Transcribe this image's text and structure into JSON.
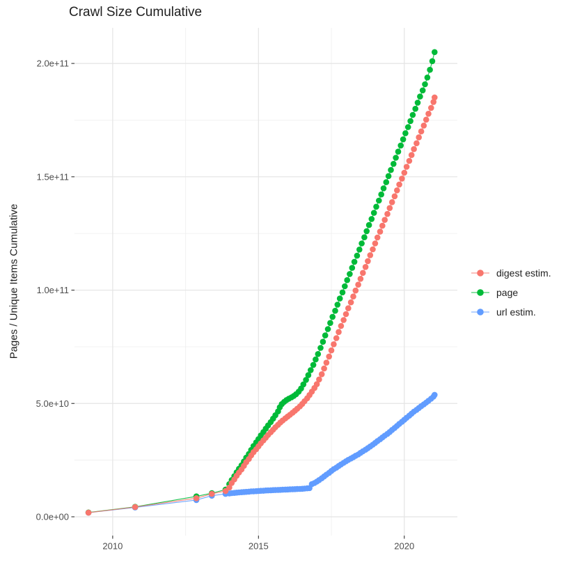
{
  "chart_data": {
    "type": "line",
    "title": "Crawl Size Cumulative",
    "xlabel": "",
    "ylabel": "Pages / Unique Items Cumulative",
    "x_unit": "year (crawl date, decimal)",
    "y_unit": "cumulative count, values in billions (1e9)",
    "grid": true,
    "legend_position": "right",
    "x_range": [
      2008.69,
      2021.82
    ],
    "y_range_e9": [
      -8.3,
      215.7
    ],
    "x_ticks": [
      {
        "value": 2010,
        "label": "2010"
      },
      {
        "value": 2015,
        "label": "2015"
      },
      {
        "value": 2020,
        "label": "2020"
      }
    ],
    "x_minor_ticks": [
      2012.5,
      2017.5
    ],
    "y_ticks": [
      {
        "value_e9": 0,
        "label": "0.0e+00"
      },
      {
        "value_e9": 50,
        "label": "5.0e+10"
      },
      {
        "value_e9": 100,
        "label": "1.0e+11"
      },
      {
        "value_e9": 150,
        "label": "1.5e+11"
      },
      {
        "value_e9": 200,
        "label": "2.0e+11"
      }
    ],
    "y_minor_ticks_e9": [
      25,
      75,
      125,
      175
    ],
    "series": [
      {
        "name": "digest estim.",
        "color": "#F8766D",
        "points_year_billions": [
          [
            2009.17,
            1.8
          ],
          [
            2010.77,
            4.3
          ],
          [
            2012.87,
            8.2
          ],
          [
            2013.4,
            10.1
          ],
          [
            2013.87,
            11.4
          ],
          [
            2014.0,
            12.9
          ],
          [
            2014.08,
            14.9
          ],
          [
            2014.17,
            16.5
          ],
          [
            2014.25,
            18.1
          ],
          [
            2014.33,
            19.5
          ],
          [
            2014.42,
            20.9
          ],
          [
            2014.5,
            22.5
          ],
          [
            2014.58,
            24.1
          ],
          [
            2014.67,
            25.5
          ],
          [
            2014.75,
            27.1
          ],
          [
            2014.83,
            28.5
          ],
          [
            2014.92,
            29.8
          ],
          [
            2015.0,
            31.1
          ],
          [
            2015.08,
            32.4
          ],
          [
            2015.17,
            33.7
          ],
          [
            2015.25,
            34.9
          ],
          [
            2015.33,
            36.1
          ],
          [
            2015.42,
            37.3
          ],
          [
            2015.5,
            38.4
          ],
          [
            2015.58,
            39.5
          ],
          [
            2015.67,
            40.6
          ],
          [
            2015.75,
            41.6
          ],
          [
            2015.83,
            42.5
          ],
          [
            2015.92,
            43.4
          ],
          [
            2016.0,
            44.2
          ],
          [
            2016.08,
            45.0
          ],
          [
            2016.17,
            45.9
          ],
          [
            2016.25,
            46.8
          ],
          [
            2016.33,
            47.7
          ],
          [
            2016.42,
            48.7
          ],
          [
            2016.5,
            49.8
          ],
          [
            2016.58,
            51.0
          ],
          [
            2016.67,
            52.3
          ],
          [
            2016.75,
            53.7
          ],
          [
            2016.83,
            55.2
          ],
          [
            2016.92,
            56.8
          ],
          [
            2017.0,
            58.5
          ],
          [
            2017.08,
            60.6
          ],
          [
            2017.17,
            62.9
          ],
          [
            2017.25,
            65.4
          ],
          [
            2017.33,
            68.0
          ],
          [
            2017.42,
            70.7
          ],
          [
            2017.5,
            73.4
          ],
          [
            2017.58,
            76.1
          ],
          [
            2017.67,
            78.8
          ],
          [
            2017.75,
            81.5
          ],
          [
            2017.83,
            84.2
          ],
          [
            2017.92,
            86.8
          ],
          [
            2018.0,
            89.4
          ],
          [
            2018.08,
            92.0
          ],
          [
            2018.17,
            94.6
          ],
          [
            2018.25,
            97.2
          ],
          [
            2018.33,
            99.8
          ],
          [
            2018.42,
            102.4
          ],
          [
            2018.5,
            105.0
          ],
          [
            2018.58,
            107.6
          ],
          [
            2018.67,
            110.2
          ],
          [
            2018.75,
            112.8
          ],
          [
            2018.83,
            115.4
          ],
          [
            2018.92,
            118.0
          ],
          [
            2019.0,
            120.6
          ],
          [
            2019.08,
            123.2
          ],
          [
            2019.17,
            125.8
          ],
          [
            2019.25,
            128.4
          ],
          [
            2019.33,
            131.0
          ],
          [
            2019.42,
            133.6
          ],
          [
            2019.5,
            136.2
          ],
          [
            2019.58,
            138.8
          ],
          [
            2019.67,
            141.4
          ],
          [
            2019.75,
            144.0
          ],
          [
            2019.83,
            146.6
          ],
          [
            2019.92,
            149.2
          ],
          [
            2020.0,
            151.8
          ],
          [
            2020.08,
            154.4
          ],
          [
            2020.17,
            157.0
          ],
          [
            2020.25,
            159.6
          ],
          [
            2020.33,
            162.2
          ],
          [
            2020.42,
            164.8
          ],
          [
            2020.5,
            167.4
          ],
          [
            2020.58,
            170.0
          ],
          [
            2020.67,
            172.6
          ],
          [
            2020.75,
            175.2
          ],
          [
            2020.83,
            177.8
          ],
          [
            2020.92,
            180.4
          ],
          [
            2021.0,
            183.0
          ],
          [
            2021.04,
            185.0
          ]
        ]
      },
      {
        "name": "page",
        "color": "#00BA38",
        "points_year_billions": [
          [
            2009.17,
            1.9
          ],
          [
            2010.77,
            4.4
          ],
          [
            2012.87,
            9.0
          ],
          [
            2013.4,
            10.4
          ],
          [
            2013.87,
            12.0
          ],
          [
            2014.0,
            14.4
          ],
          [
            2014.08,
            16.2
          ],
          [
            2014.17,
            17.9
          ],
          [
            2014.25,
            19.6
          ],
          [
            2014.33,
            21.2
          ],
          [
            2014.42,
            22.7
          ],
          [
            2014.5,
            24.4
          ],
          [
            2014.58,
            26.1
          ],
          [
            2014.67,
            27.7
          ],
          [
            2014.75,
            29.5
          ],
          [
            2014.83,
            31.2
          ],
          [
            2014.92,
            32.8
          ],
          [
            2015.0,
            34.3
          ],
          [
            2015.08,
            35.9
          ],
          [
            2015.17,
            37.4
          ],
          [
            2015.25,
            38.9
          ],
          [
            2015.33,
            40.3
          ],
          [
            2015.42,
            41.8
          ],
          [
            2015.5,
            43.3
          ],
          [
            2015.58,
            44.8
          ],
          [
            2015.67,
            46.5
          ],
          [
            2015.73,
            48.3
          ],
          [
            2015.8,
            49.7
          ],
          [
            2015.88,
            50.7
          ],
          [
            2015.96,
            51.5
          ],
          [
            2016.04,
            52.1
          ],
          [
            2016.13,
            52.7
          ],
          [
            2016.21,
            53.3
          ],
          [
            2016.29,
            54.1
          ],
          [
            2016.38,
            55.2
          ],
          [
            2016.46,
            56.6
          ],
          [
            2016.54,
            58.4
          ],
          [
            2016.63,
            60.4
          ],
          [
            2016.71,
            62.5
          ],
          [
            2016.79,
            64.7
          ],
          [
            2016.88,
            67.0
          ],
          [
            2016.96,
            69.4
          ],
          [
            2017.04,
            71.8
          ],
          [
            2017.13,
            74.5
          ],
          [
            2017.21,
            77.2
          ],
          [
            2017.29,
            80.0
          ],
          [
            2017.38,
            82.8
          ],
          [
            2017.46,
            85.5
          ],
          [
            2017.54,
            88.2
          ],
          [
            2017.63,
            90.9
          ],
          [
            2017.71,
            93.6
          ],
          [
            2017.79,
            96.3
          ],
          [
            2017.88,
            99.0
          ],
          [
            2017.96,
            101.7
          ],
          [
            2018.04,
            104.4
          ],
          [
            2018.13,
            107.1
          ],
          [
            2018.21,
            109.8
          ],
          [
            2018.29,
            112.5
          ],
          [
            2018.38,
            115.2
          ],
          [
            2018.46,
            117.9
          ],
          [
            2018.54,
            120.6
          ],
          [
            2018.63,
            123.3
          ],
          [
            2018.71,
            126.0
          ],
          [
            2018.79,
            128.7
          ],
          [
            2018.88,
            131.4
          ],
          [
            2018.96,
            134.1
          ],
          [
            2019.04,
            136.8
          ],
          [
            2019.13,
            139.5
          ],
          [
            2019.21,
            142.2
          ],
          [
            2019.29,
            144.9
          ],
          [
            2019.38,
            147.6
          ],
          [
            2019.46,
            150.3
          ],
          [
            2019.54,
            153.0
          ],
          [
            2019.63,
            155.7
          ],
          [
            2019.71,
            158.4
          ],
          [
            2019.79,
            161.1
          ],
          [
            2019.88,
            163.8
          ],
          [
            2019.96,
            166.5
          ],
          [
            2020.04,
            169.2
          ],
          [
            2020.13,
            171.9
          ],
          [
            2020.21,
            174.6
          ],
          [
            2020.29,
            177.3
          ],
          [
            2020.38,
            180.0
          ],
          [
            2020.46,
            182.7
          ],
          [
            2020.54,
            185.4
          ],
          [
            2020.63,
            188.1
          ],
          [
            2020.71,
            190.8
          ],
          [
            2020.79,
            193.8
          ],
          [
            2020.88,
            197.2
          ],
          [
            2020.96,
            201.0
          ],
          [
            2021.04,
            205.0
          ]
        ]
      },
      {
        "name": "url estim.",
        "color": "#619CFF",
        "points_year_billions": [
          [
            2009.17,
            1.8
          ],
          [
            2010.77,
            4.1
          ],
          [
            2012.87,
            7.4
          ],
          [
            2013.4,
            9.3
          ],
          [
            2013.87,
            10.1
          ],
          [
            2014.0,
            10.3
          ],
          [
            2014.08,
            10.45
          ],
          [
            2014.17,
            10.55
          ],
          [
            2014.25,
            10.65
          ],
          [
            2014.33,
            10.75
          ],
          [
            2014.42,
            10.85
          ],
          [
            2014.5,
            10.95
          ],
          [
            2014.58,
            11.0
          ],
          [
            2014.67,
            11.1
          ],
          [
            2014.75,
            11.2
          ],
          [
            2014.83,
            11.25
          ],
          [
            2014.92,
            11.3
          ],
          [
            2015.0,
            11.4
          ],
          [
            2015.08,
            11.45
          ],
          [
            2015.17,
            11.5
          ],
          [
            2015.25,
            11.6
          ],
          [
            2015.33,
            11.65
          ],
          [
            2015.42,
            11.7
          ],
          [
            2015.5,
            11.75
          ],
          [
            2015.58,
            11.8
          ],
          [
            2015.67,
            11.85
          ],
          [
            2015.75,
            11.9
          ],
          [
            2015.83,
            11.95
          ],
          [
            2015.92,
            12.0
          ],
          [
            2016.0,
            12.05
          ],
          [
            2016.08,
            12.1
          ],
          [
            2016.17,
            12.15
          ],
          [
            2016.25,
            12.2
          ],
          [
            2016.33,
            12.25
          ],
          [
            2016.42,
            12.3
          ],
          [
            2016.5,
            12.35
          ],
          [
            2016.58,
            12.45
          ],
          [
            2016.67,
            12.55
          ],
          [
            2016.75,
            12.65
          ],
          [
            2016.83,
            14.4
          ],
          [
            2016.92,
            14.9
          ],
          [
            2017.0,
            15.5
          ],
          [
            2017.08,
            16.2
          ],
          [
            2017.17,
            17.0
          ],
          [
            2017.25,
            17.8
          ],
          [
            2017.33,
            18.6
          ],
          [
            2017.42,
            19.4
          ],
          [
            2017.5,
            20.2
          ],
          [
            2017.58,
            21.0
          ],
          [
            2017.67,
            21.7
          ],
          [
            2017.75,
            22.4
          ],
          [
            2017.83,
            23.1
          ],
          [
            2017.92,
            23.8
          ],
          [
            2018.0,
            24.5
          ],
          [
            2018.08,
            25.1
          ],
          [
            2018.17,
            25.7
          ],
          [
            2018.25,
            26.3
          ],
          [
            2018.33,
            26.9
          ],
          [
            2018.42,
            27.5
          ],
          [
            2018.5,
            28.2
          ],
          [
            2018.58,
            28.9
          ],
          [
            2018.67,
            29.6
          ],
          [
            2018.75,
            30.3
          ],
          [
            2018.83,
            31.0
          ],
          [
            2018.92,
            31.8
          ],
          [
            2019.0,
            32.6
          ],
          [
            2019.08,
            33.4
          ],
          [
            2019.17,
            34.2
          ],
          [
            2019.25,
            35.0
          ],
          [
            2019.33,
            35.8
          ],
          [
            2019.42,
            36.6
          ],
          [
            2019.5,
            37.4
          ],
          [
            2019.58,
            38.3
          ],
          [
            2019.67,
            39.2
          ],
          [
            2019.75,
            40.1
          ],
          [
            2019.83,
            41.0
          ],
          [
            2019.92,
            41.9
          ],
          [
            2020.0,
            42.8
          ],
          [
            2020.08,
            43.7
          ],
          [
            2020.17,
            44.6
          ],
          [
            2020.25,
            45.5
          ],
          [
            2020.33,
            46.4
          ],
          [
            2020.42,
            47.2
          ],
          [
            2020.5,
            48.0
          ],
          [
            2020.58,
            48.8
          ],
          [
            2020.67,
            49.6
          ],
          [
            2020.75,
            50.4
          ],
          [
            2020.83,
            51.2
          ],
          [
            2020.92,
            52.1
          ],
          [
            2021.0,
            53.0
          ],
          [
            2021.04,
            53.8
          ]
        ]
      }
    ]
  },
  "theme": {
    "background": "#FFFFFF",
    "grid_major_color": "#E4E4E4",
    "grid_minor_color": "#F0F0F0",
    "tick_mark_color": "#333333",
    "tick_label_color": "#4D4D4D",
    "text_color": "#1F1F1F"
  }
}
